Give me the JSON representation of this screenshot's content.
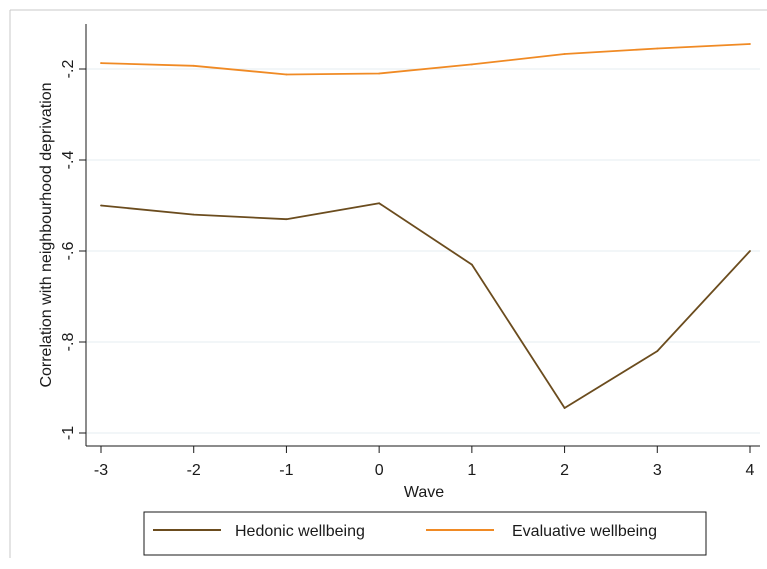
{
  "chart_data": {
    "type": "line",
    "xlabel": "Wave",
    "ylabel": "Correlation with neighbourhood deprivation",
    "x": [
      -3,
      -2,
      -1,
      0,
      1,
      2,
      3,
      4
    ],
    "xlim": [
      -3,
      4
    ],
    "ylim": [
      -1.0,
      -0.15
    ],
    "xticks": [
      "-3",
      "-2",
      "-1",
      "0",
      "1",
      "2",
      "3",
      "4"
    ],
    "yticks": [
      {
        "value": -0.2,
        "label": "-.2"
      },
      {
        "value": -0.4,
        "label": "-.4"
      },
      {
        "value": -0.6,
        "label": "-.6"
      },
      {
        "value": -0.8,
        "label": "-.8"
      },
      {
        "value": -1.0,
        "label": "-1"
      }
    ],
    "grid": true,
    "legend_position": "bottom",
    "series": [
      {
        "name": "Hedonic wellbeing",
        "color": "#6b4c1e",
        "values": [
          -0.5,
          -0.52,
          -0.53,
          -0.495,
          -0.63,
          -0.945,
          -0.82,
          -0.6
        ]
      },
      {
        "name": "Evaluative wellbeing",
        "color": "#f08a24",
        "values": [
          -0.187,
          -0.193,
          -0.212,
          -0.21,
          -0.19,
          -0.167,
          -0.155,
          -0.145
        ]
      }
    ]
  }
}
